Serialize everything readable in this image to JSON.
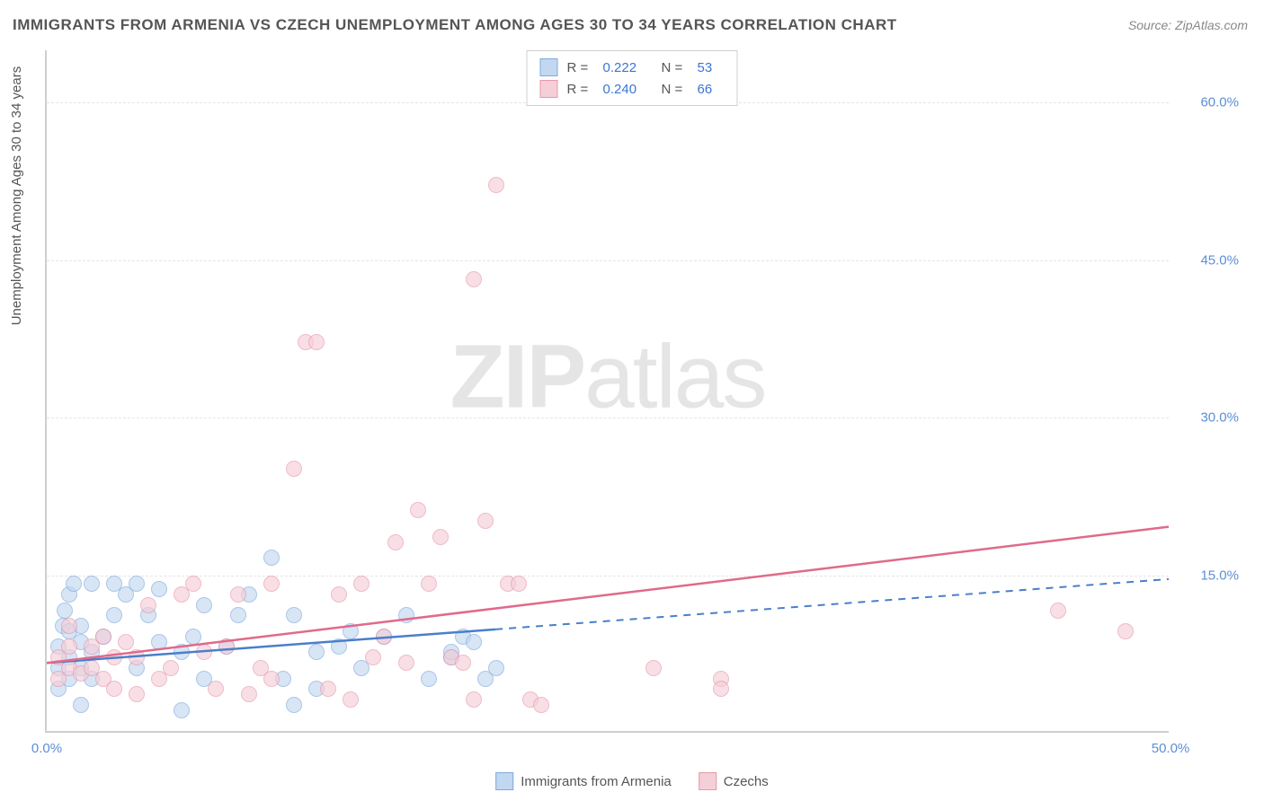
{
  "title_text": "IMMIGRANTS FROM ARMENIA VS CZECH UNEMPLOYMENT AMONG AGES 30 TO 34 YEARS CORRELATION CHART",
  "source_text": "Source: ZipAtlas.com",
  "ylabel_text": "Unemployment Among Ages 30 to 34 years",
  "watermark_bold": "ZIP",
  "watermark_light": "atlas",
  "chart": {
    "type": "scatter",
    "xlim": [
      0,
      50
    ],
    "ylim": [
      0,
      65
    ],
    "x_ticks": [
      {
        "v": 0,
        "label": "0.0%"
      },
      {
        "v": 50,
        "label": "50.0%"
      }
    ],
    "y_ticks": [
      {
        "v": 15,
        "label": "15.0%"
      },
      {
        "v": 30,
        "label": "30.0%"
      },
      {
        "v": 45,
        "label": "45.0%"
      },
      {
        "v": 60,
        "label": "60.0%"
      }
    ],
    "background_color": "#ffffff",
    "grid_color": "#e5e5e5",
    "axis_color": "#cfcfcf",
    "tick_label_color": "#5b8fd6",
    "point_radius": 9,
    "point_opacity": 0.65,
    "line_width": 2.5
  },
  "series": [
    {
      "id": "armenia",
      "label": "Immigrants from Armenia",
      "fill": "#c2d8f0",
      "stroke": "#7fa9dd",
      "line_color": "#4a7fc9",
      "r_value": "0.222",
      "n_value": "53",
      "trend": {
        "x1": 0,
        "y1": 6.5,
        "x2": 50,
        "y2": 14.5,
        "solid_until_x": 20
      },
      "points": [
        [
          0.5,
          4
        ],
        [
          0.5,
          6
        ],
        [
          0.5,
          8
        ],
        [
          0.7,
          10
        ],
        [
          0.8,
          11.5
        ],
        [
          1,
          5
        ],
        [
          1,
          7
        ],
        [
          1,
          9.5
        ],
        [
          1,
          13
        ],
        [
          1.2,
          14
        ],
        [
          1.5,
          6
        ],
        [
          1.5,
          8.5
        ],
        [
          1.5,
          10
        ],
        [
          1.5,
          2.5
        ],
        [
          2,
          14
        ],
        [
          2,
          5
        ],
        [
          2,
          7.5
        ],
        [
          2.5,
          9
        ],
        [
          3,
          11
        ],
        [
          3,
          14
        ],
        [
          3.5,
          13
        ],
        [
          4,
          14
        ],
        [
          4,
          6
        ],
        [
          4.5,
          11
        ],
        [
          5,
          13.5
        ],
        [
          5,
          8.5
        ],
        [
          6,
          7.5
        ],
        [
          6,
          2
        ],
        [
          6.5,
          9
        ],
        [
          7,
          12
        ],
        [
          7,
          5
        ],
        [
          8,
          8
        ],
        [
          8.5,
          11
        ],
        [
          9,
          13
        ],
        [
          10,
          16.5
        ],
        [
          10.5,
          5
        ],
        [
          11,
          11
        ],
        [
          11,
          2.5
        ],
        [
          12,
          7.5
        ],
        [
          12,
          4
        ],
        [
          13,
          8
        ],
        [
          13.5,
          9.5
        ],
        [
          14,
          6
        ],
        [
          15,
          9
        ],
        [
          16,
          11
        ],
        [
          17,
          5
        ],
        [
          18,
          7
        ],
        [
          18,
          7.5
        ],
        [
          18.5,
          9
        ],
        [
          19,
          8.5
        ],
        [
          19.5,
          5
        ],
        [
          20,
          6
        ]
      ]
    },
    {
      "id": "czech",
      "label": "Czechs",
      "fill": "#f5cfd8",
      "stroke": "#e797ab",
      "line_color": "#e06a8a",
      "r_value": "0.240",
      "n_value": "66",
      "trend": {
        "x1": 0,
        "y1": 6.5,
        "x2": 50,
        "y2": 19.5,
        "solid_until_x": 50
      },
      "points": [
        [
          0.5,
          5
        ],
        [
          0.5,
          7
        ],
        [
          1,
          6
        ],
        [
          1,
          8
        ],
        [
          1,
          10
        ],
        [
          1.5,
          5.5
        ],
        [
          2,
          6
        ],
        [
          2,
          8
        ],
        [
          2.5,
          5
        ],
        [
          2.5,
          9
        ],
        [
          3,
          4
        ],
        [
          3,
          7
        ],
        [
          3.5,
          8.5
        ],
        [
          4,
          7
        ],
        [
          4,
          3.5
        ],
        [
          4.5,
          12
        ],
        [
          5,
          5
        ],
        [
          5.5,
          6
        ],
        [
          6,
          13
        ],
        [
          6.5,
          14
        ],
        [
          7,
          7.5
        ],
        [
          7.5,
          4
        ],
        [
          8,
          8
        ],
        [
          8.5,
          13
        ],
        [
          9,
          3.5
        ],
        [
          9.5,
          6
        ],
        [
          10,
          14
        ],
        [
          10,
          5
        ],
        [
          11,
          25
        ],
        [
          11.5,
          37
        ],
        [
          12,
          37
        ],
        [
          12.5,
          4
        ],
        [
          13,
          13
        ],
        [
          13.5,
          3
        ],
        [
          14,
          14
        ],
        [
          14.5,
          7
        ],
        [
          15,
          9
        ],
        [
          15.5,
          18
        ],
        [
          16,
          6.5
        ],
        [
          16.5,
          21
        ],
        [
          17,
          14
        ],
        [
          17.5,
          18.5
        ],
        [
          18,
          7
        ],
        [
          18.5,
          6.5
        ],
        [
          19,
          43
        ],
        [
          19,
          3
        ],
        [
          19.5,
          20
        ],
        [
          20,
          52
        ],
        [
          20.5,
          14
        ],
        [
          21,
          14
        ],
        [
          21.5,
          3
        ],
        [
          22,
          2.5
        ],
        [
          27,
          6
        ],
        [
          30,
          5
        ],
        [
          30,
          4
        ],
        [
          45,
          11.5
        ],
        [
          48,
          9.5
        ]
      ]
    }
  ],
  "legend_top": {
    "r_label": "R  =",
    "n_label": "N  ="
  }
}
